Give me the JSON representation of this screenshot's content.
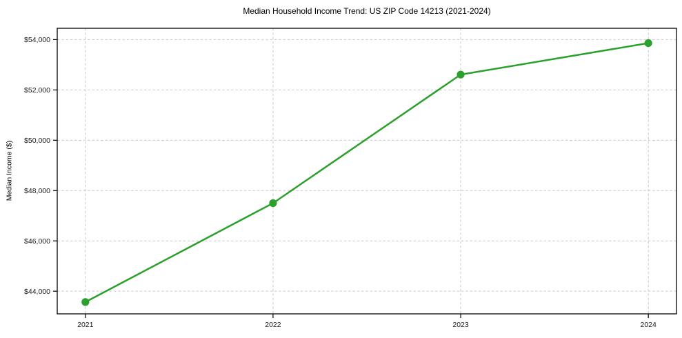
{
  "figure": {
    "background_color": "#ffffff"
  },
  "chart_data": {
    "type": "line",
    "title": "Median Household Income Trend: US ZIP Code 14213 (2021-2024)",
    "xlabel": "",
    "ylabel": "Median Income ($)",
    "x": [
      2021,
      2022,
      2023,
      2024
    ],
    "series": [
      {
        "name": "Median Household Income",
        "values": [
          43570,
          47500,
          52610,
          53860
        ],
        "color": "#2ca02c",
        "marker": "circle",
        "marker_radius": 5.6,
        "line_width": 2.5
      }
    ],
    "x_tick_labels": [
      "2021",
      "2022",
      "2023",
      "2024"
    ],
    "y_ticks": [
      44000,
      46000,
      48000,
      50000,
      52000,
      54000
    ],
    "y_tick_labels": [
      "$44,000",
      "$46,000",
      "$48,000",
      "$50,000",
      "$52,000",
      "$54,000"
    ],
    "xlim": [
      2020.85,
      2024.15
    ],
    "ylim": [
      43100,
      54450
    ],
    "grid": true,
    "grid_color": "#c9c9c9",
    "grid_dash": "3.5,2.8",
    "spine_color": "#000000",
    "tick_color": "#000000",
    "tick_label_color": "#1a1a1a",
    "tick_label_size": 10.5,
    "legend": "none"
  }
}
